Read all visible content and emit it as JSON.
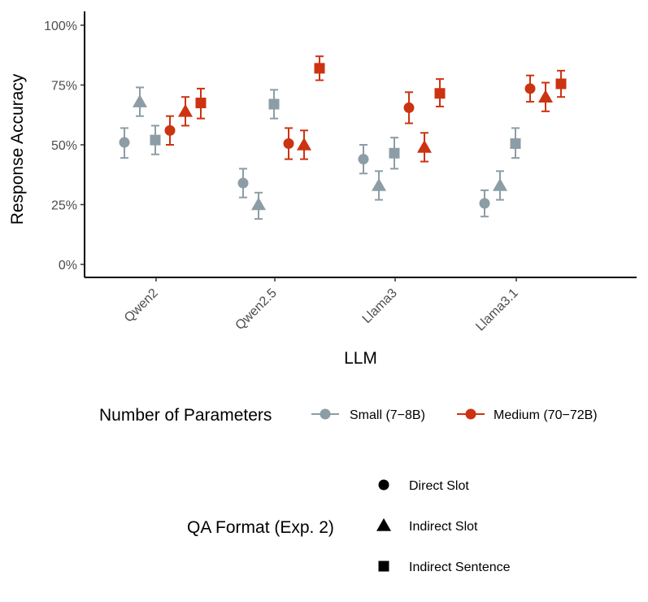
{
  "chart_data": {
    "type": "scatter",
    "xlabel": "LLM",
    "ylabel": "Response Accuracy",
    "categories": [
      "Qwen2",
      "Qwen2.5",
      "Llama3",
      "Llama3.1"
    ],
    "ylim": [
      0,
      1
    ],
    "yticks": [
      0,
      0.25,
      0.5,
      0.75,
      1.0
    ],
    "ytick_labels": [
      "0%",
      "25%",
      "50%",
      "75%",
      "100%"
    ],
    "grid": false,
    "color_legend": {
      "title": "Number of Parameters",
      "entries": [
        {
          "label": "Small (7−8B)",
          "color": "#8C9DA6"
        },
        {
          "label": "Medium (70−72B)",
          "color": "#CC3311"
        }
      ]
    },
    "shape_legend": {
      "title": "QA Format (Exp. 2)",
      "entries": [
        {
          "label": "Direct Slot",
          "shape": "circle"
        },
        {
          "label": "Indirect Slot",
          "shape": "triangle"
        },
        {
          "label": "Indirect Sentence",
          "shape": "square"
        }
      ]
    },
    "series": [
      {
        "size": "Small (7−8B)",
        "format": "Direct Slot",
        "values": [
          0.51,
          0.34,
          0.44,
          0.255
        ],
        "lower": [
          0.445,
          0.28,
          0.38,
          0.2
        ],
        "upper": [
          0.57,
          0.4,
          0.5,
          0.31
        ]
      },
      {
        "size": "Small (7−8B)",
        "format": "Indirect Slot",
        "values": [
          0.68,
          0.25,
          0.33,
          0.33
        ],
        "lower": [
          0.62,
          0.19,
          0.27,
          0.27
        ],
        "upper": [
          0.74,
          0.3,
          0.39,
          0.39
        ]
      },
      {
        "size": "Small (7−8B)",
        "format": "Indirect Sentence",
        "values": [
          0.52,
          0.67,
          0.465,
          0.505
        ],
        "lower": [
          0.46,
          0.61,
          0.4,
          0.445
        ],
        "upper": [
          0.58,
          0.73,
          0.53,
          0.57
        ]
      },
      {
        "size": "Medium (70−72B)",
        "format": "Direct Slot",
        "values": [
          0.56,
          0.505,
          0.655,
          0.735
        ],
        "lower": [
          0.5,
          0.44,
          0.59,
          0.68
        ],
        "upper": [
          0.62,
          0.57,
          0.72,
          0.79
        ]
      },
      {
        "size": "Medium (70−72B)",
        "format": "Indirect Slot",
        "values": [
          0.64,
          0.5,
          0.49,
          0.7
        ],
        "lower": [
          0.58,
          0.44,
          0.43,
          0.64
        ],
        "upper": [
          0.7,
          0.56,
          0.55,
          0.76
        ]
      },
      {
        "size": "Medium (70−72B)",
        "format": "Indirect Sentence",
        "values": [
          0.675,
          0.82,
          0.715,
          0.755
        ],
        "lower": [
          0.61,
          0.77,
          0.66,
          0.7
        ],
        "upper": [
          0.735,
          0.87,
          0.775,
          0.81
        ]
      }
    ]
  }
}
